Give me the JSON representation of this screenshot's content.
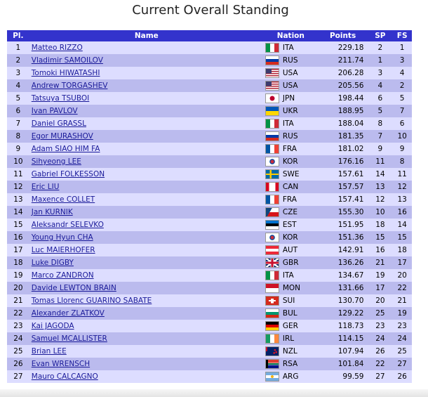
{
  "title": "Current Overall Standing",
  "headers": {
    "pl": "Pl.",
    "name": "Name",
    "nation": "Nation",
    "points": "Points",
    "sp": "SP",
    "fs": "FS"
  },
  "colors": {
    "header_bg": "#3333cc",
    "row_light": "#ddddff",
    "row_dark": "#bbbbee",
    "link": "#1a1a99"
  },
  "rows": [
    {
      "pl": "1",
      "name": "Matteo RIZZO",
      "nation": "ITA",
      "points": "229.18",
      "sp": "2",
      "fs": "1"
    },
    {
      "pl": "2",
      "name": "Vladimir SAMOILOV",
      "nation": "RUS",
      "points": "211.74",
      "sp": "1",
      "fs": "3"
    },
    {
      "pl": "3",
      "name": "Tomoki HIWATASHI",
      "nation": "USA",
      "points": "206.28",
      "sp": "3",
      "fs": "4"
    },
    {
      "pl": "4",
      "name": "Andrew TORGASHEV",
      "nation": "USA",
      "points": "205.56",
      "sp": "4",
      "fs": "2"
    },
    {
      "pl": "5",
      "name": "Tatsuya TSUBOI",
      "nation": "JPN",
      "points": "198.44",
      "sp": "6",
      "fs": "5"
    },
    {
      "pl": "6",
      "name": "Ivan PAVLOV",
      "nation": "UKR",
      "points": "188.95",
      "sp": "5",
      "fs": "7"
    },
    {
      "pl": "7",
      "name": "Daniel GRASSL",
      "nation": "ITA",
      "points": "188.04",
      "sp": "8",
      "fs": "6"
    },
    {
      "pl": "8",
      "name": "Egor MURASHOV",
      "nation": "RUS",
      "points": "181.35",
      "sp": "7",
      "fs": "10"
    },
    {
      "pl": "9",
      "name": "Adam SIAO HIM FA",
      "nation": "FRA",
      "points": "181.02",
      "sp": "9",
      "fs": "9"
    },
    {
      "pl": "10",
      "name": "Sihyeong LEE",
      "nation": "KOR",
      "points": "176.16",
      "sp": "11",
      "fs": "8"
    },
    {
      "pl": "11",
      "name": "Gabriel FOLKESSON",
      "nation": "SWE",
      "points": "157.61",
      "sp": "14",
      "fs": "11"
    },
    {
      "pl": "12",
      "name": "Eric LIU",
      "nation": "CAN",
      "points": "157.57",
      "sp": "13",
      "fs": "12"
    },
    {
      "pl": "13",
      "name": "Maxence COLLET",
      "nation": "FRA",
      "points": "157.41",
      "sp": "12",
      "fs": "13"
    },
    {
      "pl": "14",
      "name": "Jan KURNIK",
      "nation": "CZE",
      "points": "155.30",
      "sp": "10",
      "fs": "16"
    },
    {
      "pl": "15",
      "name": "Aleksandr SELEVKO",
      "nation": "EST",
      "points": "151.95",
      "sp": "18",
      "fs": "14"
    },
    {
      "pl": "16",
      "name": "Young Hyun CHA",
      "nation": "KOR",
      "points": "151.36",
      "sp": "15",
      "fs": "15"
    },
    {
      "pl": "17",
      "name": "Luc MAIERHOFER",
      "nation": "AUT",
      "points": "142.91",
      "sp": "16",
      "fs": "18"
    },
    {
      "pl": "18",
      "name": "Luke DIGBY",
      "nation": "GBR",
      "points": "136.26",
      "sp": "21",
      "fs": "17"
    },
    {
      "pl": "19",
      "name": "Marco ZANDRON",
      "nation": "ITA",
      "points": "134.67",
      "sp": "19",
      "fs": "20"
    },
    {
      "pl": "20",
      "name": "Davide LEWTON BRAIN",
      "nation": "MON",
      "points": "131.66",
      "sp": "17",
      "fs": "22"
    },
    {
      "pl": "21",
      "name": "Tomas Llorenc GUARINO SABATE",
      "nation": "SUI",
      "points": "130.70",
      "sp": "20",
      "fs": "21"
    },
    {
      "pl": "22",
      "name": "Alexander ZLATKOV",
      "nation": "BUL",
      "points": "129.22",
      "sp": "25",
      "fs": "19"
    },
    {
      "pl": "23",
      "name": "Kai JAGODA",
      "nation": "GER",
      "points": "118.73",
      "sp": "23",
      "fs": "23"
    },
    {
      "pl": "24",
      "name": "Samuel MCALLISTER",
      "nation": "IRL",
      "points": "114.15",
      "sp": "24",
      "fs": "24"
    },
    {
      "pl": "25",
      "name": "Brian LEE",
      "nation": "NZL",
      "points": "107.94",
      "sp": "26",
      "fs": "25"
    },
    {
      "pl": "26",
      "name": "Evan WRENSCH",
      "nation": "RSA",
      "points": "101.84",
      "sp": "22",
      "fs": "27"
    },
    {
      "pl": "27",
      "name": "Mauro CALCAGNO",
      "nation": "ARG",
      "points": "99.59",
      "sp": "27",
      "fs": "26"
    }
  ]
}
